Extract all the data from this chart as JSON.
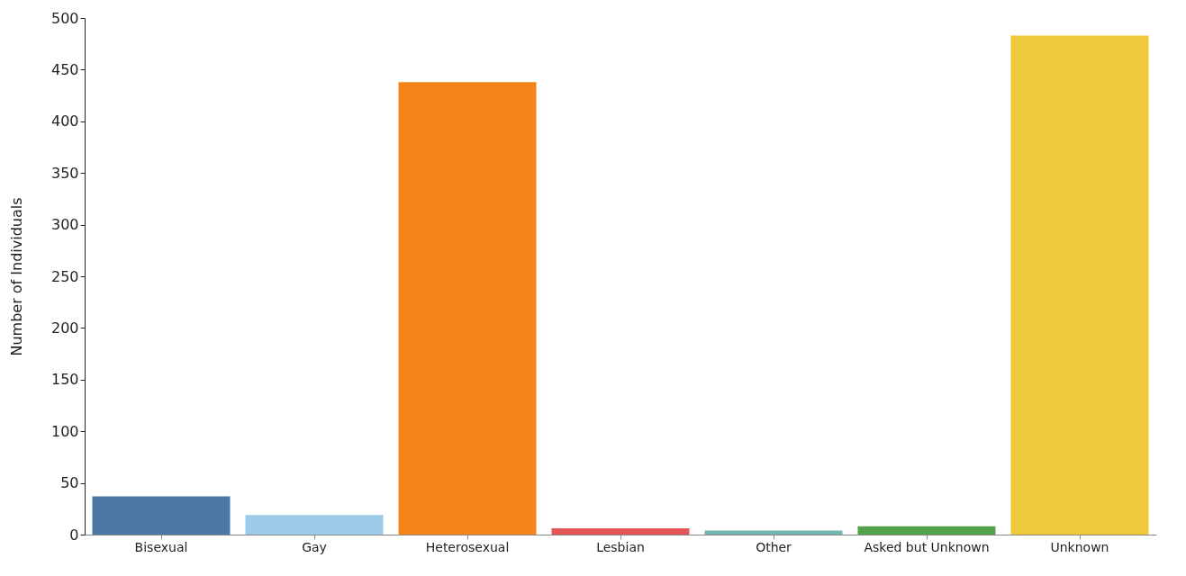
{
  "chart_data": {
    "type": "bar",
    "ylabel": "Number of Individuals",
    "categories": [
      "Bisexual",
      "Gay",
      "Heterosexual",
      "Lesbian",
      "Other",
      "Asked but Unknown",
      "Unknown"
    ],
    "values": [
      37,
      19,
      438,
      6,
      4,
      8,
      483
    ],
    "colors": [
      "#4c78a8",
      "#9ecae9",
      "#f58518",
      "#e45756",
      "#72b7b2",
      "#54a24b",
      "#eeca3b"
    ],
    "ylim": [
      0,
      500
    ],
    "yticks": [
      0,
      50,
      100,
      150,
      200,
      250,
      300,
      350,
      400,
      450,
      500
    ],
    "grid": false
  }
}
